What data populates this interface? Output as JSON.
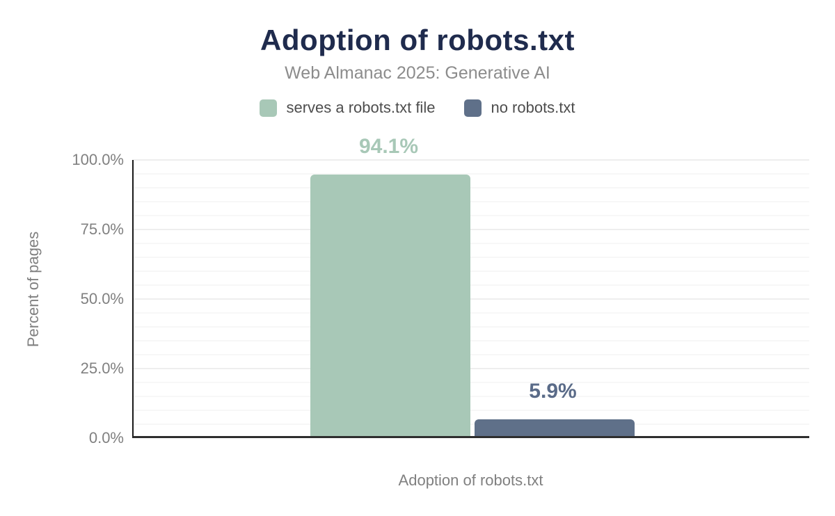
{
  "header": {
    "title": "Adoption of robots.txt",
    "subtitle": "Web Almanac 2025: Generative AI"
  },
  "chart_data": {
    "type": "bar",
    "title": "Adoption of robots.txt",
    "subtitle": "Web Almanac 2025: Generative AI",
    "categories": [
      "Adoption of robots.txt"
    ],
    "series": [
      {
        "name": "serves a robots.txt file",
        "value": 94.1,
        "label": "94.1%",
        "color": "#a8c8b7",
        "label_color": "#a8c8b7"
      },
      {
        "name": "no robots.txt",
        "value": 5.9,
        "label": "5.9%",
        "color": "#5f7089",
        "label_color": "#5a6b88"
      }
    ],
    "xlabel": "Adoption of robots.txt",
    "ylabel": "Percent of pages",
    "ylim": [
      0,
      100
    ],
    "yticks": [
      {
        "value": 0,
        "label": "0.0%"
      },
      {
        "value": 25,
        "label": "25.0%"
      },
      {
        "value": 50,
        "label": "50.0%"
      },
      {
        "value": 75,
        "label": "75.0%"
      },
      {
        "value": 100,
        "label": "100.0%"
      }
    ],
    "grid": {
      "minor_step": 5,
      "major_step": 25,
      "minor_color": "#f7f7f7",
      "major_color": "#eeeeee"
    },
    "legend_position": "top"
  },
  "colors": {
    "title": "#1f2b4d",
    "subtitle": "#8c8c8c",
    "legend_text": "#4d4d4d",
    "axis_text": "#808080",
    "axis_line": "#222222",
    "background": "#ffffff"
  }
}
